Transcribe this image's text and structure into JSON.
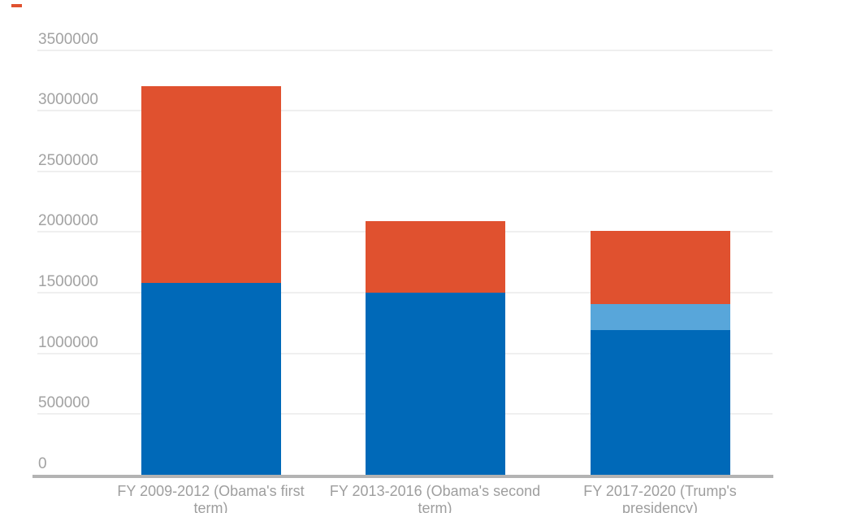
{
  "chart_data": {
    "type": "bar",
    "stacked": true,
    "title": "",
    "xlabel": "",
    "ylabel": "",
    "categories": [
      "FY 2009-2012 (Obama's first term)",
      "FY 2013-2016 (Obama's second term)",
      "FY 2017-2020 (Trump's presidency)"
    ],
    "series": [
      {
        "name": "dark-blue-bottom-segment",
        "color": "#0069b8",
        "values": [
          1580000,
          1500000,
          1195000
        ]
      },
      {
        "name": "light-blue-middle-segment",
        "color": "#58a6da",
        "values": [
          0,
          0,
          210000
        ]
      },
      {
        "name": "orange-top-segment",
        "color": "#e0512f",
        "values": [
          1625000,
          590000,
          605000
        ]
      }
    ],
    "totals": [
      3205000,
      2090000,
      2010000
    ],
    "yticks": [
      0,
      500000,
      1000000,
      1500000,
      2000000,
      2500000,
      3000000,
      3500000
    ],
    "ylim": [
      0,
      3500000
    ],
    "grid": true,
    "legend": "none"
  },
  "category_label_lines": [
    {
      "line1": "FY 2009-2012 (Obama's first",
      "line2": "term)"
    },
    {
      "line1": "FY 2013-2016 (Obama's second",
      "line2": "term)"
    },
    {
      "line1": "FY 2017-2020 (Trump's",
      "line2": "presidency)"
    }
  ],
  "colors": {
    "dark_blue": "#0069b8",
    "light_blue": "#58a6da",
    "orange": "#e0512f",
    "gridline": "#efefef",
    "axis_line": "#b3b3b3",
    "ytick_label": "#a2a2a2",
    "category_label": "#9e9e9e",
    "top_left_marker": "#e0512f"
  }
}
